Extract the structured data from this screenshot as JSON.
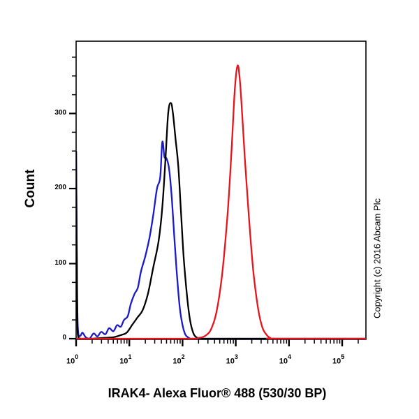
{
  "chart_data": {
    "type": "line",
    "subtype": "flow-cytometry-histogram",
    "title": "",
    "xlabel": "IRAK4- Alexa Fluor® 488 (530/30 BP)",
    "ylabel": "Count",
    "xscale": "log",
    "xlim_log10": [
      0,
      5.45
    ],
    "ylim": [
      0,
      398
    ],
    "x_ticks": [
      {
        "exp": "0",
        "value": 1
      },
      {
        "exp": "1",
        "value": 10
      },
      {
        "exp": "2",
        "value": 100
      },
      {
        "exp": "3",
        "value": 1000
      },
      {
        "exp": "4",
        "value": 10000
      },
      {
        "exp": "5",
        "value": 100000
      }
    ],
    "y_ticks": [
      0,
      100,
      200,
      300
    ],
    "y_minor_step": 25,
    "annotation": "Copyright (c) 2016 Abcam Plc",
    "grid": false,
    "legend": null,
    "series": [
      {
        "name": "blue",
        "color": "#1a1acc",
        "x_log10": [
          0.0,
          0.02,
          0.04,
          0.08,
          0.12,
          0.18,
          0.25,
          0.33,
          0.4,
          0.47,
          0.55,
          0.62,
          0.7,
          0.77,
          0.84,
          0.9,
          0.97,
          1.03,
          1.1,
          1.16,
          1.22,
          1.3,
          1.38,
          1.45,
          1.52,
          1.58,
          1.62,
          1.66,
          1.7,
          1.75,
          1.8,
          1.85,
          1.9,
          1.95,
          2.0,
          2.05,
          2.1,
          2.15,
          2.2,
          2.3,
          2.5,
          3.0,
          5.45
        ],
        "counts": [
          250,
          60,
          8,
          4,
          8,
          2,
          0,
          7,
          3,
          9,
          6,
          14,
          10,
          18,
          16,
          25,
          30,
          47,
          60,
          68,
          90,
          110,
          135,
          165,
          200,
          215,
          262,
          242,
          240,
          225,
          185,
          130,
          80,
          40,
          18,
          6,
          2,
          0,
          0,
          0,
          0,
          0,
          0
        ]
      },
      {
        "name": "black",
        "color": "#000000",
        "x_log10": [
          0.0,
          0.02,
          0.04,
          0.1,
          0.3,
          0.5,
          0.7,
          0.85,
          0.95,
          1.05,
          1.15,
          1.25,
          1.35,
          1.45,
          1.55,
          1.62,
          1.68,
          1.73,
          1.78,
          1.82,
          1.87,
          1.92,
          1.97,
          2.02,
          2.08,
          2.14,
          2.2,
          2.26,
          2.35,
          2.5,
          3.0,
          5.45
        ],
        "counts": [
          250,
          40,
          2,
          0,
          0,
          1,
          2,
          5,
          8,
          18,
          28,
          38,
          60,
          95,
          130,
          175,
          240,
          300,
          314,
          300,
          265,
          230,
          170,
          110,
          60,
          25,
          8,
          2,
          0,
          0,
          0,
          0
        ]
      },
      {
        "name": "red",
        "color": "#e8141c",
        "x_log10": [
          0.0,
          2.0,
          2.3,
          2.45,
          2.55,
          2.65,
          2.75,
          2.85,
          2.92,
          2.98,
          3.03,
          3.07,
          3.12,
          3.17,
          3.25,
          3.33,
          3.42,
          3.5,
          3.58,
          3.65,
          3.75,
          5.45
        ],
        "counts": [
          0,
          0,
          1,
          5,
          15,
          40,
          90,
          170,
          250,
          330,
          363,
          350,
          300,
          240,
          160,
          90,
          40,
          15,
          5,
          1,
          0,
          0
        ]
      }
    ]
  },
  "labels": {
    "ylabel": "Count",
    "xlabel": "IRAK4- Alexa Fluor® 488 (530/30 BP)",
    "copyright": "Copyright (c) 2016 Abcam Plc",
    "x_base": "10"
  }
}
